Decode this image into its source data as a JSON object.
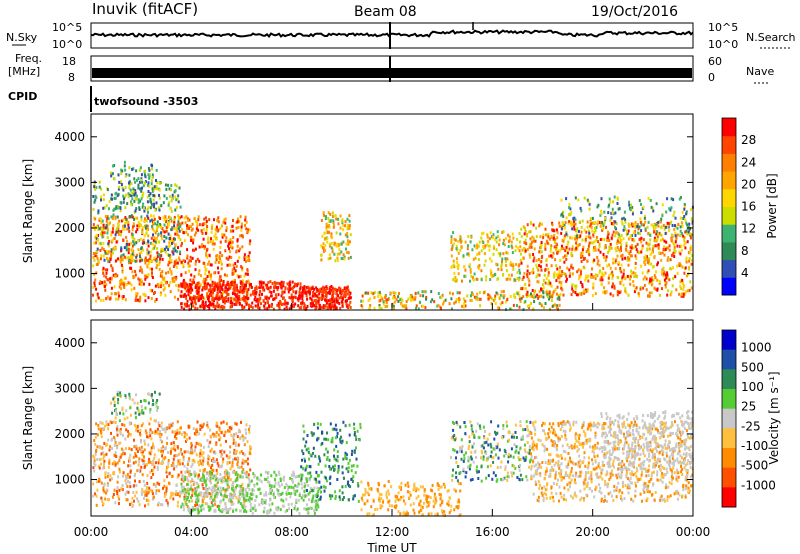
{
  "header": {
    "station": "Inuvik (fitACF)",
    "beam": "Beam 08",
    "date": "19/Oct/2016"
  },
  "panels": {
    "nsky_label": "N.Sky",
    "nsearch_label": "N.Search",
    "nsky_ticks": [
      "10^5",
      "10^0"
    ],
    "freq_label_1": "Freq.",
    "freq_label_2": "[MHz]",
    "freq_ticks": [
      "18",
      "8"
    ],
    "nave_label": "Nave",
    "nave_ticks": [
      "60",
      "0"
    ],
    "cpid_label": "CPID",
    "cpid_value": "twofsound -3503"
  },
  "colors": {
    "power_scale": [
      "#0000ff",
      "#2f4fb4",
      "#2e8b57",
      "#3cb371",
      "#ccdd00",
      "#ffd700",
      "#ffa500",
      "#ff7f00",
      "#ff4500",
      "#ff0000"
    ],
    "velocity_scale": [
      "#0000cc",
      "#1f50a8",
      "#2e8b57",
      "#55cc33",
      "#c8c8c8",
      "#ffc040",
      "#ff8c00",
      "#ff5000",
      "#ff0000"
    ]
  },
  "chart_data": [
    {
      "type": "heatmap",
      "title": "Power",
      "xlabel": "",
      "ylabel": "Slant Range [km]",
      "xlim": [
        "00:00",
        "00:00"
      ],
      "ylim": [
        200,
        4500
      ],
      "yticks": [
        1000,
        2000,
        3000,
        4000
      ],
      "colorbar": {
        "label": "Power [dB]",
        "range": [
          0,
          32
        ],
        "ticks": [
          4,
          8,
          12,
          16,
          20,
          24,
          28
        ]
      }
    },
    {
      "type": "heatmap",
      "title": "Velocity",
      "xlabel": "Time UT",
      "ylabel": "Slant Range [km]",
      "xticks": [
        "00:00",
        "04:00",
        "08:00",
        "12:00",
        "16:00",
        "20:00",
        "00:00"
      ],
      "ylim": [
        200,
        4500
      ],
      "yticks": [
        1000,
        2000,
        3000,
        4000
      ],
      "colorbar": {
        "label": "Velocity [m s⁻¹]",
        "ticks": [
          "1000",
          "500",
          "100",
          "25",
          "-25",
          "-100",
          "-500",
          "-1000"
        ]
      }
    }
  ]
}
